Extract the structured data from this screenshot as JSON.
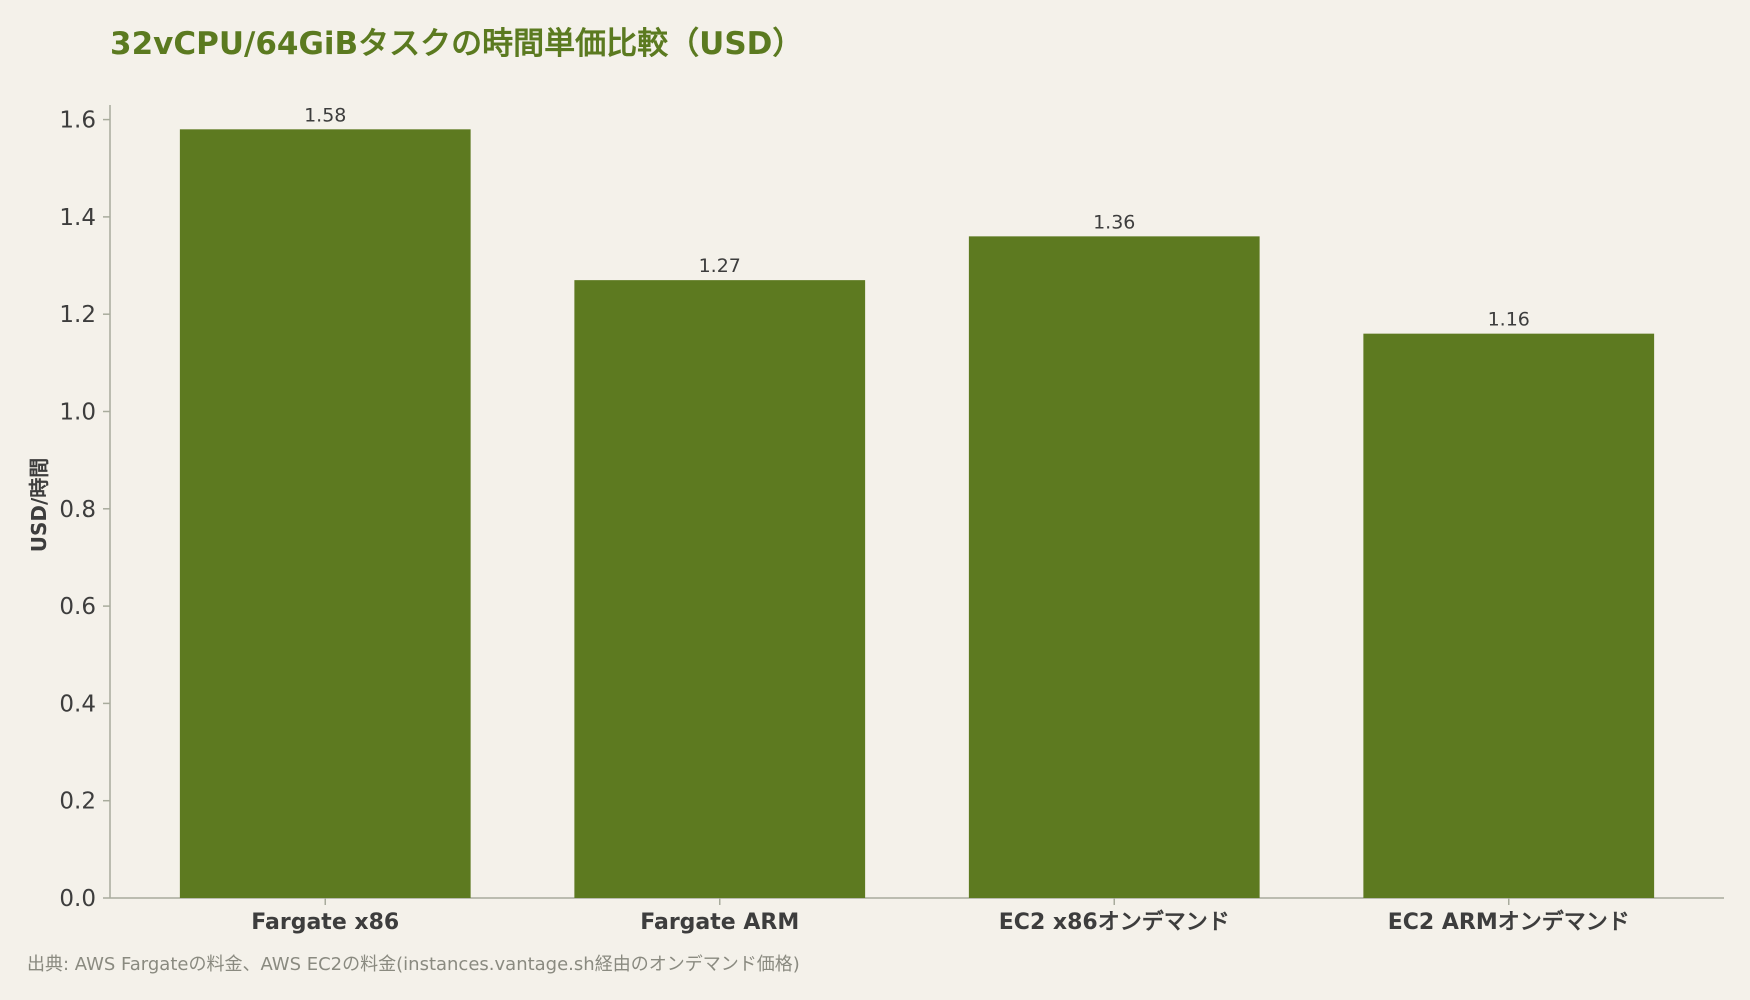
{
  "chart_data": {
    "type": "bar",
    "title": "32vCPU/64GiBタスクの時間単価比較（USD）",
    "xlabel": "",
    "ylabel": "USD/時間",
    "categories": [
      "Fargate x86",
      "Fargate ARM",
      "EC2 x86オンデマンド",
      "EC2 ARMオンデマンド"
    ],
    "values": [
      1.58,
      1.27,
      1.36,
      1.16
    ],
    "value_labels": [
      "1.58",
      "1.27",
      "1.36",
      "1.16"
    ],
    "ylim": [
      0,
      1.63
    ],
    "yticks": [
      0.0,
      0.2,
      0.4,
      0.6,
      0.8,
      1.0,
      1.2,
      1.4,
      1.6
    ],
    "ytick_labels": [
      "0.0",
      "0.2",
      "0.4",
      "0.6",
      "0.8",
      "1.0",
      "1.2",
      "1.4",
      "1.6"
    ],
    "grid": false,
    "legend": "none",
    "colors": {
      "bar": "#5d7a20",
      "title": "#5b7a20",
      "axis": "#a8ab9c",
      "text": "#3d3d3d",
      "background": "#f4f1ea"
    }
  },
  "source": "出典: AWS Fargateの料金、AWS EC2の料金(instances.vantage.sh経由のオンデマンド価格)"
}
